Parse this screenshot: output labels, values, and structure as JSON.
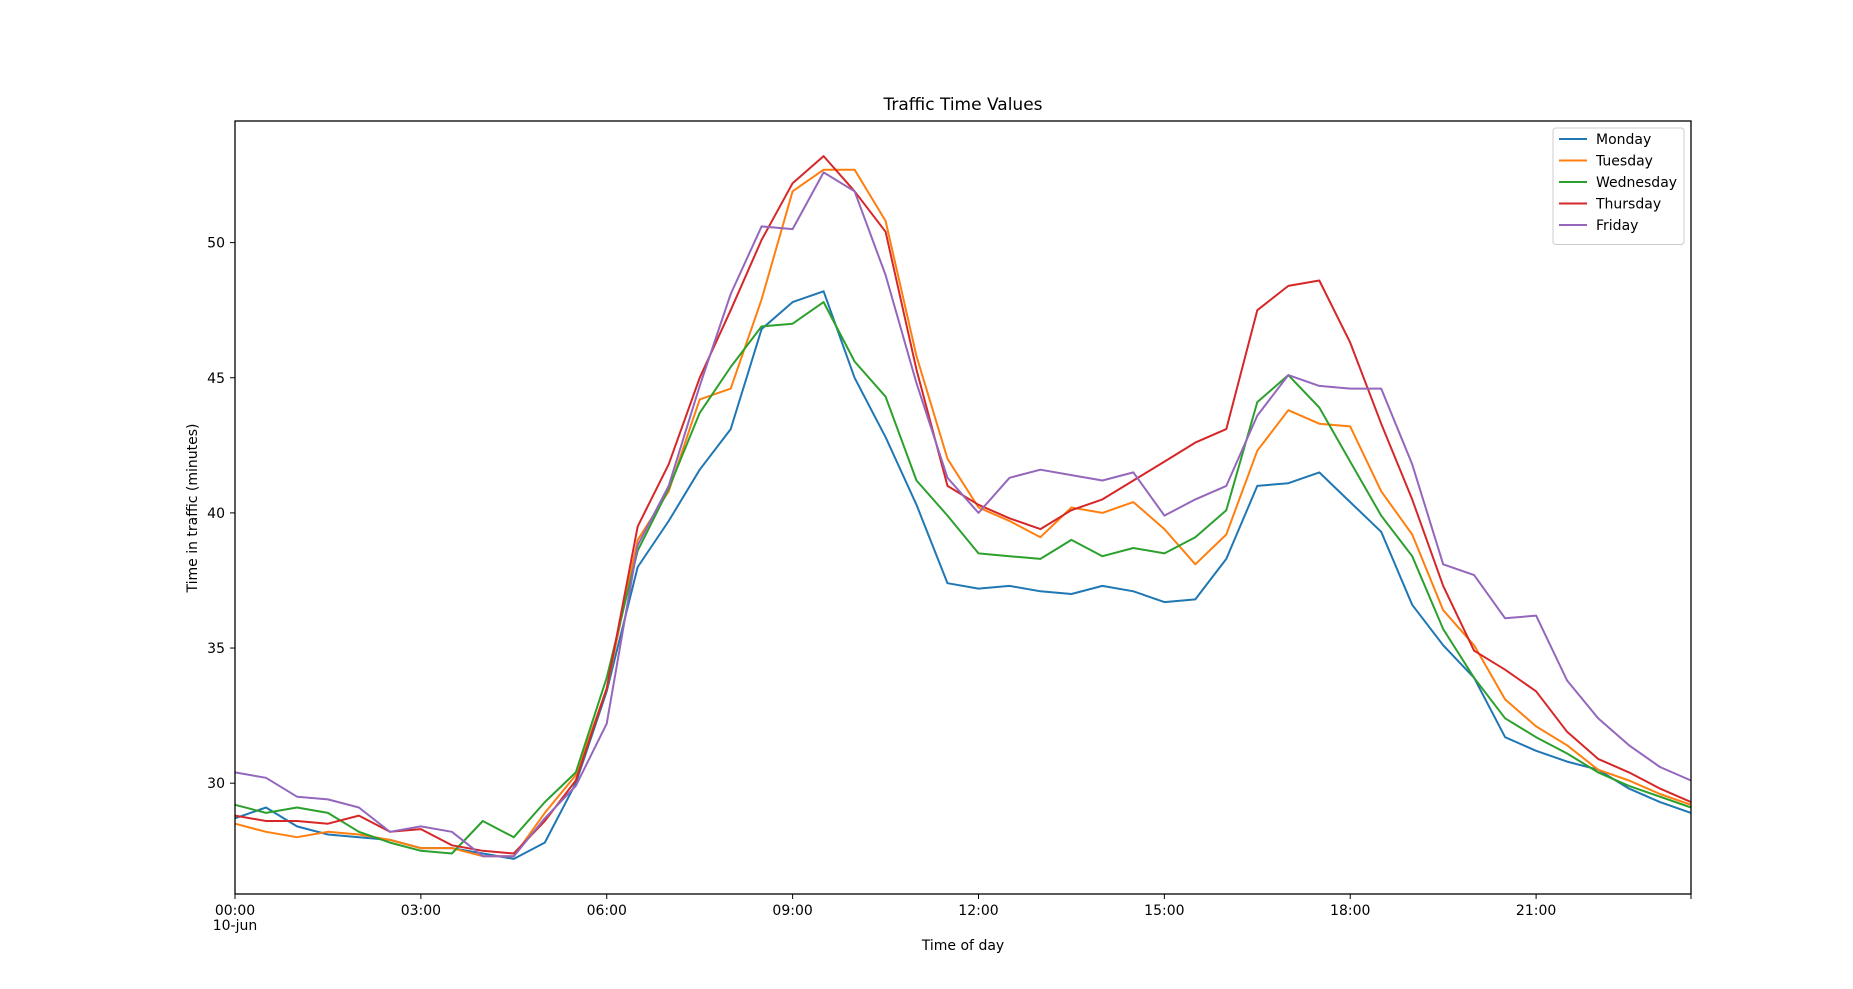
{
  "chart_data": {
    "type": "line",
    "title": "Traffic Time Values",
    "xlabel": "Time of day",
    "ylabel": "Time in traffic (minutes)",
    "x_start_date_label": "10-jun",
    "x_tick_labels": [
      "00:00",
      "03:00",
      "06:00",
      "09:00",
      "12:00",
      "15:00",
      "18:00",
      "21:00"
    ],
    "y_ticks": [
      30,
      35,
      40,
      45,
      50
    ],
    "xlim": [
      "00:00",
      "23:30"
    ],
    "ylim": [
      25.9,
      54.5
    ],
    "grid": false,
    "legend_position": "top-right",
    "x": [
      "00:00",
      "00:30",
      "01:00",
      "01:30",
      "02:00",
      "02:30",
      "03:00",
      "03:30",
      "04:00",
      "04:30",
      "05:00",
      "05:30",
      "06:00",
      "06:30",
      "07:00",
      "07:30",
      "08:00",
      "08:30",
      "09:00",
      "09:30",
      "10:00",
      "10:30",
      "11:00",
      "11:30",
      "12:00",
      "12:30",
      "13:00",
      "13:30",
      "14:00",
      "14:30",
      "15:00",
      "15:30",
      "16:00",
      "16:30",
      "17:00",
      "17:30",
      "18:00",
      "18:30",
      "19:00",
      "19:30",
      "20:00",
      "20:30",
      "21:00",
      "21:30",
      "22:00",
      "22:30",
      "23:00",
      "23:30"
    ],
    "series": [
      {
        "name": "Monday",
        "color": "#1f77b4",
        "values": [
          28.7,
          29.1,
          28.4,
          28.1,
          28.0,
          27.9,
          27.6,
          27.6,
          27.4,
          27.2,
          27.8,
          30.0,
          33.4,
          38.0,
          39.7,
          41.6,
          43.1,
          46.8,
          47.8,
          48.2,
          45.0,
          42.8,
          40.3,
          37.4,
          37.2,
          37.3,
          37.1,
          37.0,
          37.3,
          37.1,
          36.7,
          36.8,
          38.3,
          41.0,
          41.1,
          41.5,
          40.4,
          39.3,
          36.6,
          35.1,
          33.9,
          31.7,
          31.2,
          30.8,
          30.5,
          29.8,
          29.3,
          28.9
        ]
      },
      {
        "name": "Tuesday",
        "color": "#ff7f0e",
        "values": [
          28.5,
          28.2,
          28.0,
          28.2,
          28.1,
          27.9,
          27.6,
          27.6,
          27.3,
          27.3,
          28.9,
          30.3,
          33.5,
          39.0,
          40.8,
          44.2,
          44.6,
          47.9,
          51.9,
          52.7,
          52.7,
          50.8,
          45.8,
          42.0,
          40.2,
          39.7,
          39.1,
          40.2,
          40.0,
          40.4,
          39.4,
          38.1,
          39.2,
          42.3,
          43.8,
          43.3,
          43.2,
          40.8,
          39.2,
          36.4,
          35.1,
          33.1,
          32.1,
          31.4,
          30.5,
          30.1,
          29.6,
          29.2
        ]
      },
      {
        "name": "Wednesday",
        "color": "#2ca02c",
        "values": [
          29.2,
          28.9,
          29.1,
          28.9,
          28.2,
          27.8,
          27.5,
          27.4,
          28.6,
          28.0,
          29.3,
          30.4,
          33.9,
          38.6,
          40.9,
          43.7,
          45.4,
          46.9,
          47.0,
          47.8,
          45.6,
          44.3,
          41.2,
          39.9,
          38.5,
          38.4,
          38.3,
          39.0,
          38.4,
          38.7,
          38.5,
          39.1,
          40.1,
          44.1,
          45.1,
          43.9,
          41.9,
          39.9,
          38.4,
          35.7,
          33.9,
          32.4,
          31.7,
          31.1,
          30.4,
          29.9,
          29.5,
          29.1
        ]
      },
      {
        "name": "Thursday",
        "color": "#d62728",
        "values": [
          28.8,
          28.6,
          28.6,
          28.5,
          28.8,
          28.2,
          28.3,
          27.7,
          27.5,
          27.4,
          28.6,
          30.1,
          33.5,
          39.5,
          41.8,
          45.0,
          47.5,
          50.1,
          52.2,
          53.2,
          51.9,
          50.4,
          45.3,
          41.0,
          40.3,
          39.8,
          39.4,
          40.1,
          40.5,
          41.2,
          41.9,
          42.6,
          43.1,
          47.5,
          48.4,
          48.6,
          46.3,
          43.3,
          40.5,
          37.3,
          34.9,
          34.2,
          33.4,
          31.9,
          30.9,
          30.4,
          29.8,
          29.3
        ]
      },
      {
        "name": "Friday",
        "color": "#9467bd",
        "values": [
          30.4,
          30.2,
          29.5,
          29.4,
          29.1,
          28.2,
          28.4,
          28.2,
          27.3,
          27.3,
          28.7,
          29.9,
          32.2,
          38.8,
          41.0,
          44.7,
          48.1,
          50.6,
          50.5,
          52.6,
          51.9,
          48.8,
          44.8,
          41.3,
          40.0,
          41.3,
          41.6,
          41.4,
          41.2,
          41.5,
          39.9,
          40.5,
          41.0,
          43.6,
          45.1,
          44.7,
          44.6,
          44.6,
          41.8,
          38.1,
          37.7,
          36.1,
          36.2,
          33.8,
          32.4,
          31.4,
          30.6,
          30.1
        ]
      }
    ]
  }
}
